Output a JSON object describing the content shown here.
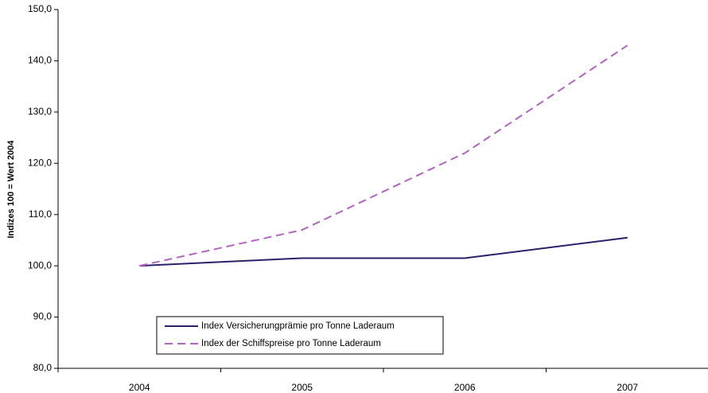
{
  "chart_data": {
    "type": "line",
    "y_label": "Indizes 100 = Wert 2004",
    "categories": [
      "2004",
      "2005",
      "2006",
      "2007"
    ],
    "series": [
      {
        "name": "Index Versicherungprämie pro Tonne Laderaum",
        "color": "#2e1f6b",
        "line_style": "solid",
        "values": [
          100,
          101.5,
          101.5,
          105.5
        ]
      },
      {
        "name": "Index der Schiffspreise pro Tonne Laderaum",
        "color": "#b462c4",
        "line_style": "dashed",
        "values": [
          100,
          107,
          122,
          143
        ]
      }
    ],
    "ylim": [
      80,
      150
    ],
    "yticks": [
      {
        "value": 80,
        "label": "80,0"
      },
      {
        "value": 90,
        "label": "90,0"
      },
      {
        "value": 100,
        "label": "100,0"
      },
      {
        "value": 110,
        "label": "110,0"
      },
      {
        "value": 120,
        "label": "120,0"
      },
      {
        "value": 130,
        "label": "130,0"
      },
      {
        "value": 140,
        "label": "140,0"
      },
      {
        "value": 150,
        "label": "150,0"
      }
    ],
    "grid": false,
    "legend_position": "bottom-left"
  }
}
